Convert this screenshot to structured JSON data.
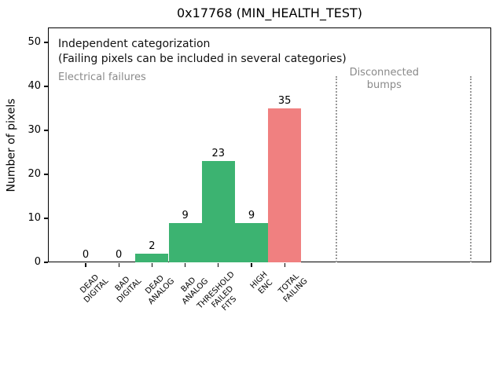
{
  "chart_data": {
    "type": "bar",
    "title": "0x17768 (MIN_HEALTH_TEST)",
    "xlabel": "",
    "ylabel": "Number of pixels",
    "categories": [
      [
        "DEAD",
        "DIGITAL"
      ],
      [
        "BAD",
        "DIGITAL"
      ],
      [
        "DEAD",
        "ANALOG"
      ],
      [
        "BAD",
        "ANALOG"
      ],
      [
        "THRESHOLD",
        "FAILED",
        "FITS"
      ],
      [
        "HIGH",
        "ENC"
      ],
      [
        "TOTAL",
        "FAILING"
      ]
    ],
    "values": [
      0,
      0,
      2,
      9,
      23,
      9,
      35
    ],
    "bar_value_labels": [
      "0",
      "0",
      "2",
      "9",
      "23",
      "9",
      "35"
    ],
    "bar_colors": [
      "#3cb371",
      "#3cb371",
      "#3cb371",
      "#3cb371",
      "#3cb371",
      "#3cb371",
      "#f08080"
    ],
    "yticks": [
      0,
      10,
      20,
      30,
      40,
      50
    ],
    "ylim": [
      0,
      53.4
    ],
    "grid": false,
    "legend": null,
    "annotations": {
      "independent": "Independent categorization",
      "failing_note": "(Failing pixels can be included in several categories)",
      "electrical": "Electrical failures",
      "disconnected": "Disconnected\nbumps"
    },
    "colors": {
      "category_bar": "#3cb371",
      "total_bar": "#f08080",
      "region_label_gray": "#8a8a8a",
      "separator_gray": "#999999",
      "axis": "#000000"
    },
    "separators": {
      "x_bar_indices": [
        7.57,
        11.6
      ],
      "top_value": 42.3
    },
    "disconnected_label_x_index": 9.0
  }
}
